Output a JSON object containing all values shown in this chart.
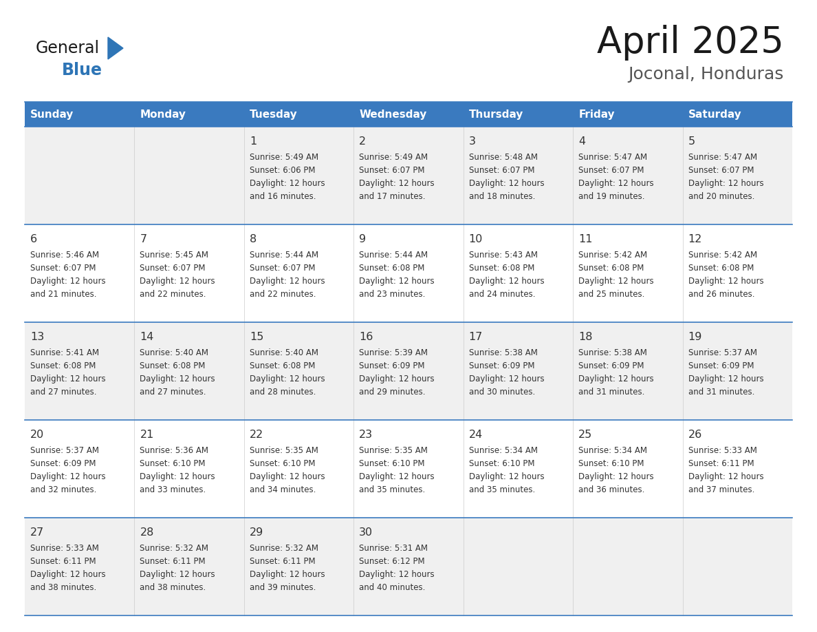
{
  "title": "April 2025",
  "subtitle": "Joconal, Honduras",
  "days_of_week": [
    "Sunday",
    "Monday",
    "Tuesday",
    "Wednesday",
    "Thursday",
    "Friday",
    "Saturday"
  ],
  "header_bg": "#3a7abf",
  "header_text": "#ffffff",
  "row_bg_light": "#f0f0f0",
  "row_bg_white": "#ffffff",
  "text_color": "#333333",
  "grid_line_color": "#3a7abf",
  "title_color": "#1a1a1a",
  "subtitle_color": "#555555",
  "logo_general_color": "#1a1a1a",
  "logo_blue_color": "#2e75b6",
  "logo_triangle_color": "#2e75b6",
  "calendar": [
    [
      {
        "day": "",
        "sunrise": "",
        "sunset": "",
        "daylight": ""
      },
      {
        "day": "",
        "sunrise": "",
        "sunset": "",
        "daylight": ""
      },
      {
        "day": "1",
        "sunrise": "5:49 AM",
        "sunset": "6:06 PM",
        "daylight": "12 hours\nand 16 minutes."
      },
      {
        "day": "2",
        "sunrise": "5:49 AM",
        "sunset": "6:07 PM",
        "daylight": "12 hours\nand 17 minutes."
      },
      {
        "day": "3",
        "sunrise": "5:48 AM",
        "sunset": "6:07 PM",
        "daylight": "12 hours\nand 18 minutes."
      },
      {
        "day": "4",
        "sunrise": "5:47 AM",
        "sunset": "6:07 PM",
        "daylight": "12 hours\nand 19 minutes."
      },
      {
        "day": "5",
        "sunrise": "5:47 AM",
        "sunset": "6:07 PM",
        "daylight": "12 hours\nand 20 minutes."
      }
    ],
    [
      {
        "day": "6",
        "sunrise": "5:46 AM",
        "sunset": "6:07 PM",
        "daylight": "12 hours\nand 21 minutes."
      },
      {
        "day": "7",
        "sunrise": "5:45 AM",
        "sunset": "6:07 PM",
        "daylight": "12 hours\nand 22 minutes."
      },
      {
        "day": "8",
        "sunrise": "5:44 AM",
        "sunset": "6:07 PM",
        "daylight": "12 hours\nand 22 minutes."
      },
      {
        "day": "9",
        "sunrise": "5:44 AM",
        "sunset": "6:08 PM",
        "daylight": "12 hours\nand 23 minutes."
      },
      {
        "day": "10",
        "sunrise": "5:43 AM",
        "sunset": "6:08 PM",
        "daylight": "12 hours\nand 24 minutes."
      },
      {
        "day": "11",
        "sunrise": "5:42 AM",
        "sunset": "6:08 PM",
        "daylight": "12 hours\nand 25 minutes."
      },
      {
        "day": "12",
        "sunrise": "5:42 AM",
        "sunset": "6:08 PM",
        "daylight": "12 hours\nand 26 minutes."
      }
    ],
    [
      {
        "day": "13",
        "sunrise": "5:41 AM",
        "sunset": "6:08 PM",
        "daylight": "12 hours\nand 27 minutes."
      },
      {
        "day": "14",
        "sunrise": "5:40 AM",
        "sunset": "6:08 PM",
        "daylight": "12 hours\nand 27 minutes."
      },
      {
        "day": "15",
        "sunrise": "5:40 AM",
        "sunset": "6:08 PM",
        "daylight": "12 hours\nand 28 minutes."
      },
      {
        "day": "16",
        "sunrise": "5:39 AM",
        "sunset": "6:09 PM",
        "daylight": "12 hours\nand 29 minutes."
      },
      {
        "day": "17",
        "sunrise": "5:38 AM",
        "sunset": "6:09 PM",
        "daylight": "12 hours\nand 30 minutes."
      },
      {
        "day": "18",
        "sunrise": "5:38 AM",
        "sunset": "6:09 PM",
        "daylight": "12 hours\nand 31 minutes."
      },
      {
        "day": "19",
        "sunrise": "5:37 AM",
        "sunset": "6:09 PM",
        "daylight": "12 hours\nand 31 minutes."
      }
    ],
    [
      {
        "day": "20",
        "sunrise": "5:37 AM",
        "sunset": "6:09 PM",
        "daylight": "12 hours\nand 32 minutes."
      },
      {
        "day": "21",
        "sunrise": "5:36 AM",
        "sunset": "6:10 PM",
        "daylight": "12 hours\nand 33 minutes."
      },
      {
        "day": "22",
        "sunrise": "5:35 AM",
        "sunset": "6:10 PM",
        "daylight": "12 hours\nand 34 minutes."
      },
      {
        "day": "23",
        "sunrise": "5:35 AM",
        "sunset": "6:10 PM",
        "daylight": "12 hours\nand 35 minutes."
      },
      {
        "day": "24",
        "sunrise": "5:34 AM",
        "sunset": "6:10 PM",
        "daylight": "12 hours\nand 35 minutes."
      },
      {
        "day": "25",
        "sunrise": "5:34 AM",
        "sunset": "6:10 PM",
        "daylight": "12 hours\nand 36 minutes."
      },
      {
        "day": "26",
        "sunrise": "5:33 AM",
        "sunset": "6:11 PM",
        "daylight": "12 hours\nand 37 minutes."
      }
    ],
    [
      {
        "day": "27",
        "sunrise": "5:33 AM",
        "sunset": "6:11 PM",
        "daylight": "12 hours\nand 38 minutes."
      },
      {
        "day": "28",
        "sunrise": "5:32 AM",
        "sunset": "6:11 PM",
        "daylight": "12 hours\nand 38 minutes."
      },
      {
        "day": "29",
        "sunrise": "5:32 AM",
        "sunset": "6:11 PM",
        "daylight": "12 hours\nand 39 minutes."
      },
      {
        "day": "30",
        "sunrise": "5:31 AM",
        "sunset": "6:12 PM",
        "daylight": "12 hours\nand 40 minutes."
      },
      {
        "day": "",
        "sunrise": "",
        "sunset": "",
        "daylight": ""
      },
      {
        "day": "",
        "sunrise": "",
        "sunset": "",
        "daylight": ""
      },
      {
        "day": "",
        "sunrise": "",
        "sunset": "",
        "daylight": ""
      }
    ]
  ],
  "row_colors": [
    "#f0f0f0",
    "#ffffff",
    "#f0f0f0",
    "#ffffff",
    "#f0f0f0"
  ]
}
